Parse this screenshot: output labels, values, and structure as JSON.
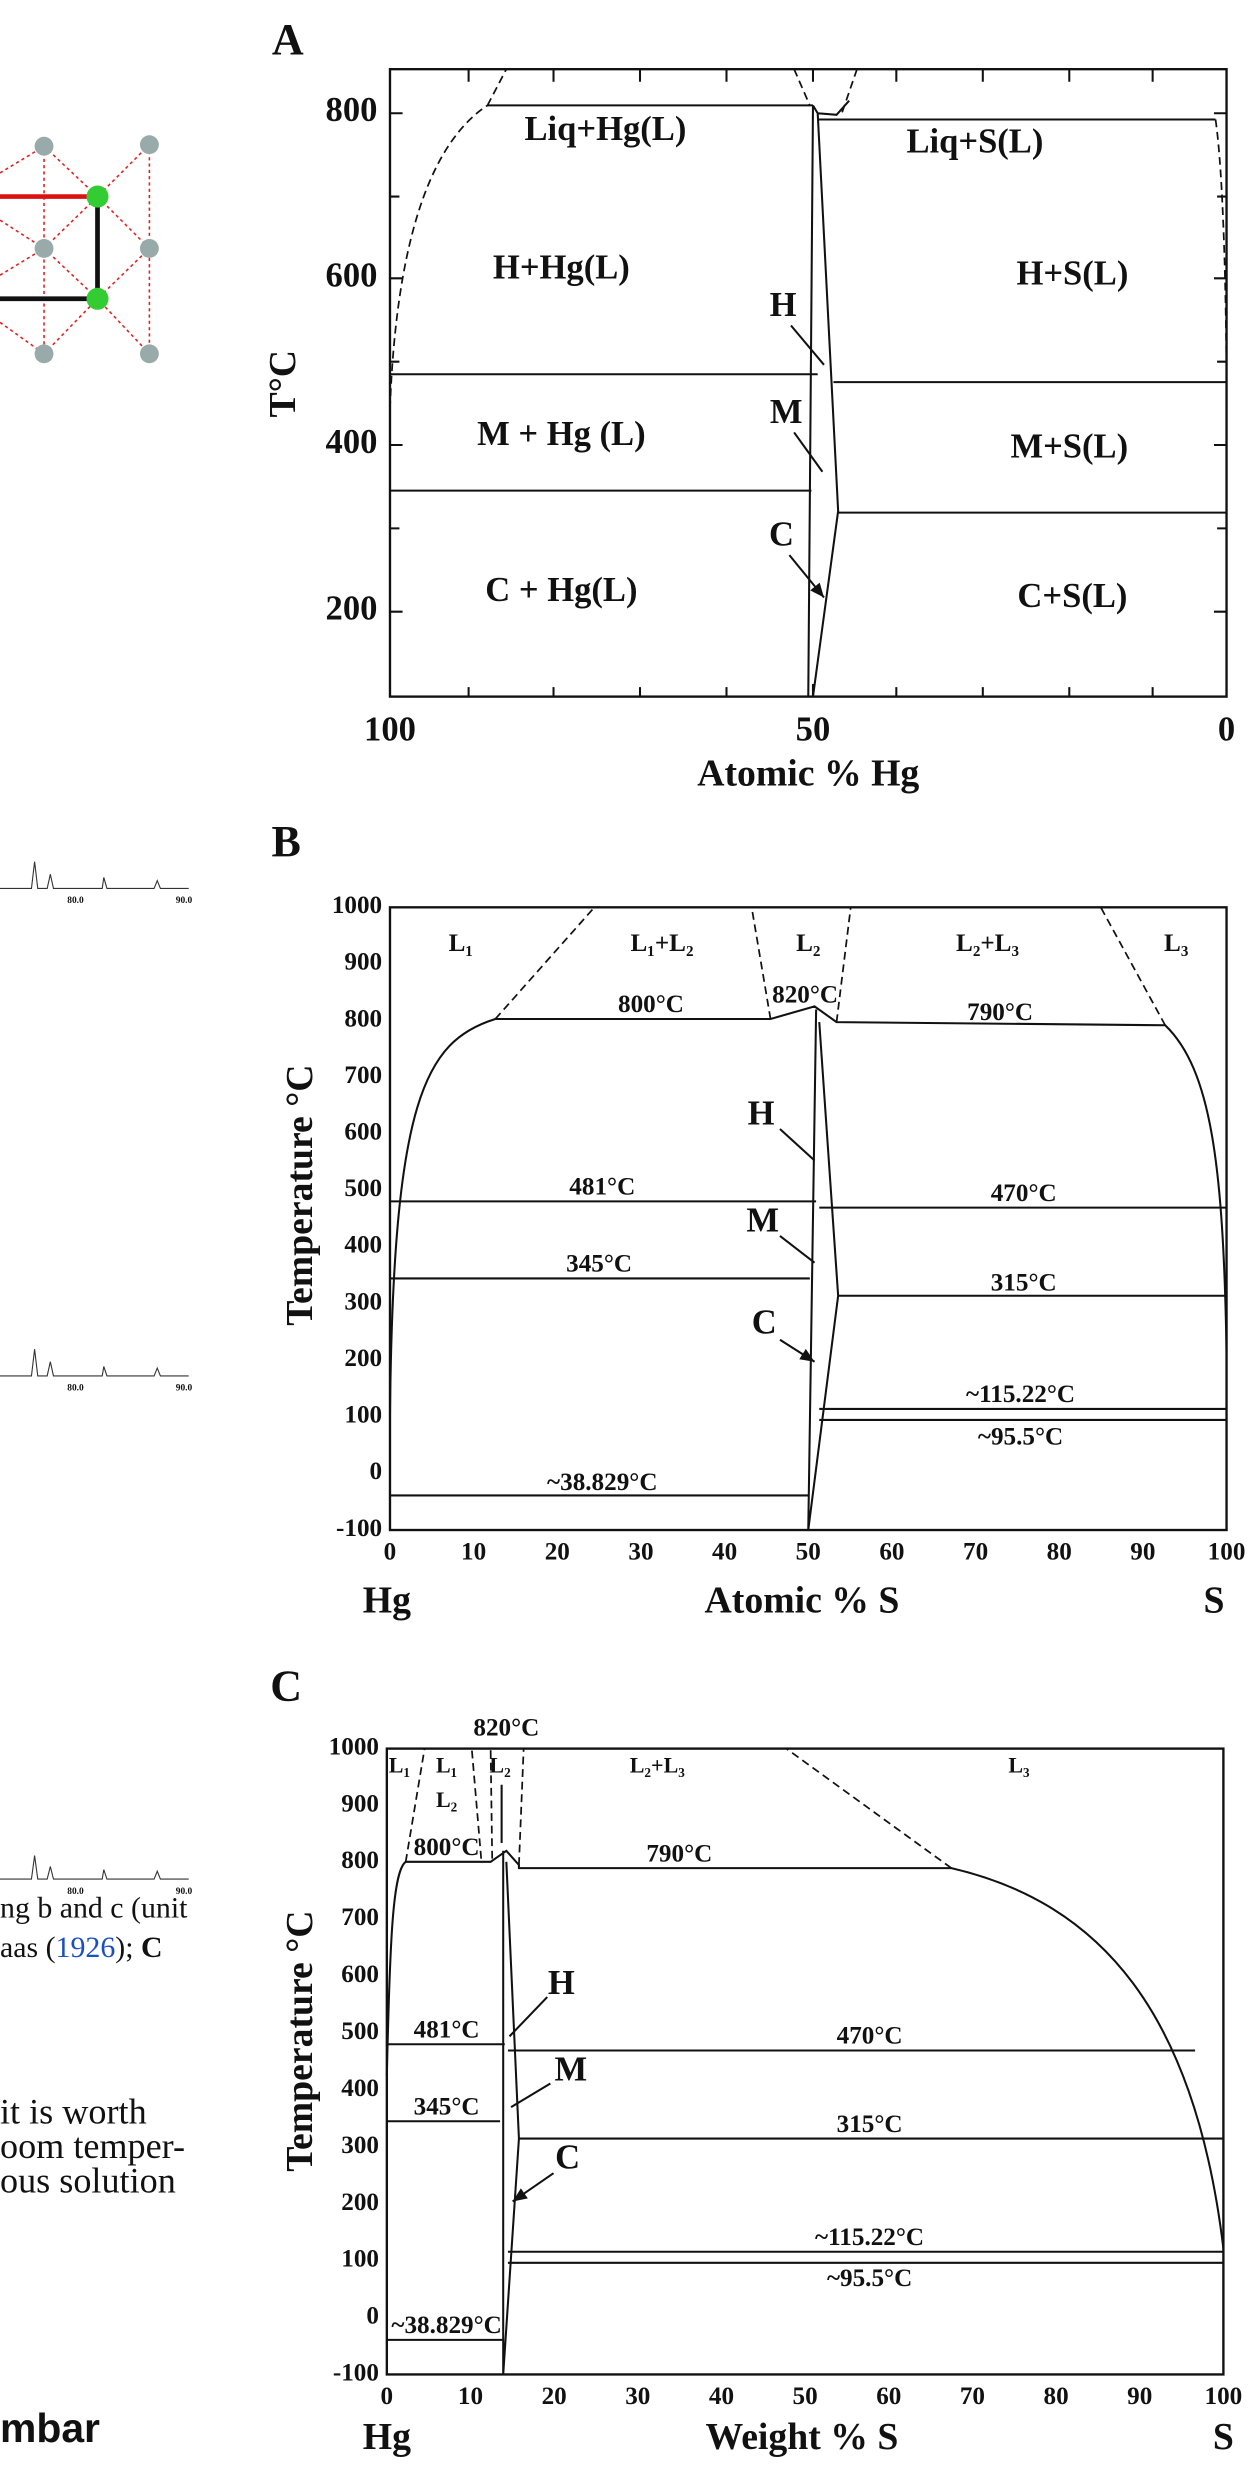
{
  "fragments": {
    "caption_1": "ng b and c (unit",
    "caption_2a": "aas (",
    "caption_2b": "1926",
    "caption_2c": "); ",
    "caption_2d": "C",
    "para_1": "it is worth",
    "para_2": "oom temper-",
    "para_3": "ous solution",
    "heading": "mbar",
    "spectrum_ticks": [
      "80.0",
      "90.0"
    ]
  },
  "panels": [
    {
      "label": "A",
      "y_label": "T°C",
      "x_label": "Atomic % Hg",
      "yticks": [
        "800",
        "600",
        "400",
        "200"
      ],
      "xticks": [
        "100",
        "50",
        "0"
      ],
      "regions": [
        "Liq+Hg(L)",
        "Liq+S(L)",
        "H+Hg(L)",
        "H+S(L)",
        "M + Hg (L)",
        "M+S(L)",
        "C + Hg(L)",
        "C+S(L)"
      ],
      "phases": [
        "H",
        "M",
        "C"
      ]
    },
    {
      "label": "B",
      "y_label": "Temperature °C",
      "x_label": "Atomic % S",
      "x_left": "Hg",
      "x_right": "S",
      "yticks": [
        "1000",
        "900",
        "800",
        "700",
        "600",
        "500",
        "400",
        "300",
        "200",
        "100",
        "0",
        "-100"
      ],
      "xticks": [
        "0",
        "10",
        "20",
        "30",
        "40",
        "50",
        "60",
        "70",
        "80",
        "90",
        "100"
      ],
      "regions": [
        "L₁",
        "L₁+L₂",
        "L₂",
        "L₂+L₃",
        "L₃"
      ],
      "temperatures": [
        "800°C",
        "820°C",
        "790°C",
        "481°C",
        "470°C",
        "345°C",
        "315°C",
        "~115.22°C",
        "~95.5°C",
        "~38.829°C"
      ],
      "phases": [
        "H",
        "M",
        "C"
      ]
    },
    {
      "label": "C",
      "y_label": "Temperature °C",
      "x_label": "Weight % S",
      "x_left": "Hg",
      "x_right": "S",
      "yticks": [
        "1000",
        "900",
        "800",
        "700",
        "600",
        "500",
        "400",
        "300",
        "200",
        "100",
        "0",
        "-100"
      ],
      "xticks": [
        "0",
        "10",
        "20",
        "30",
        "40",
        "50",
        "60",
        "70",
        "80",
        "90",
        "100"
      ],
      "regions": [
        "L₁",
        "L₁",
        "L₂",
        "L₂",
        "L₂+L₃",
        "L₃"
      ],
      "temperatures": [
        "820°C",
        "800°C",
        "790°C",
        "481°C",
        "470°C",
        "345°C",
        "315°C",
        "~115.22°C",
        "~95.5°C",
        "~38.829°C"
      ],
      "phases": [
        "H",
        "M",
        "C"
      ]
    }
  ]
}
